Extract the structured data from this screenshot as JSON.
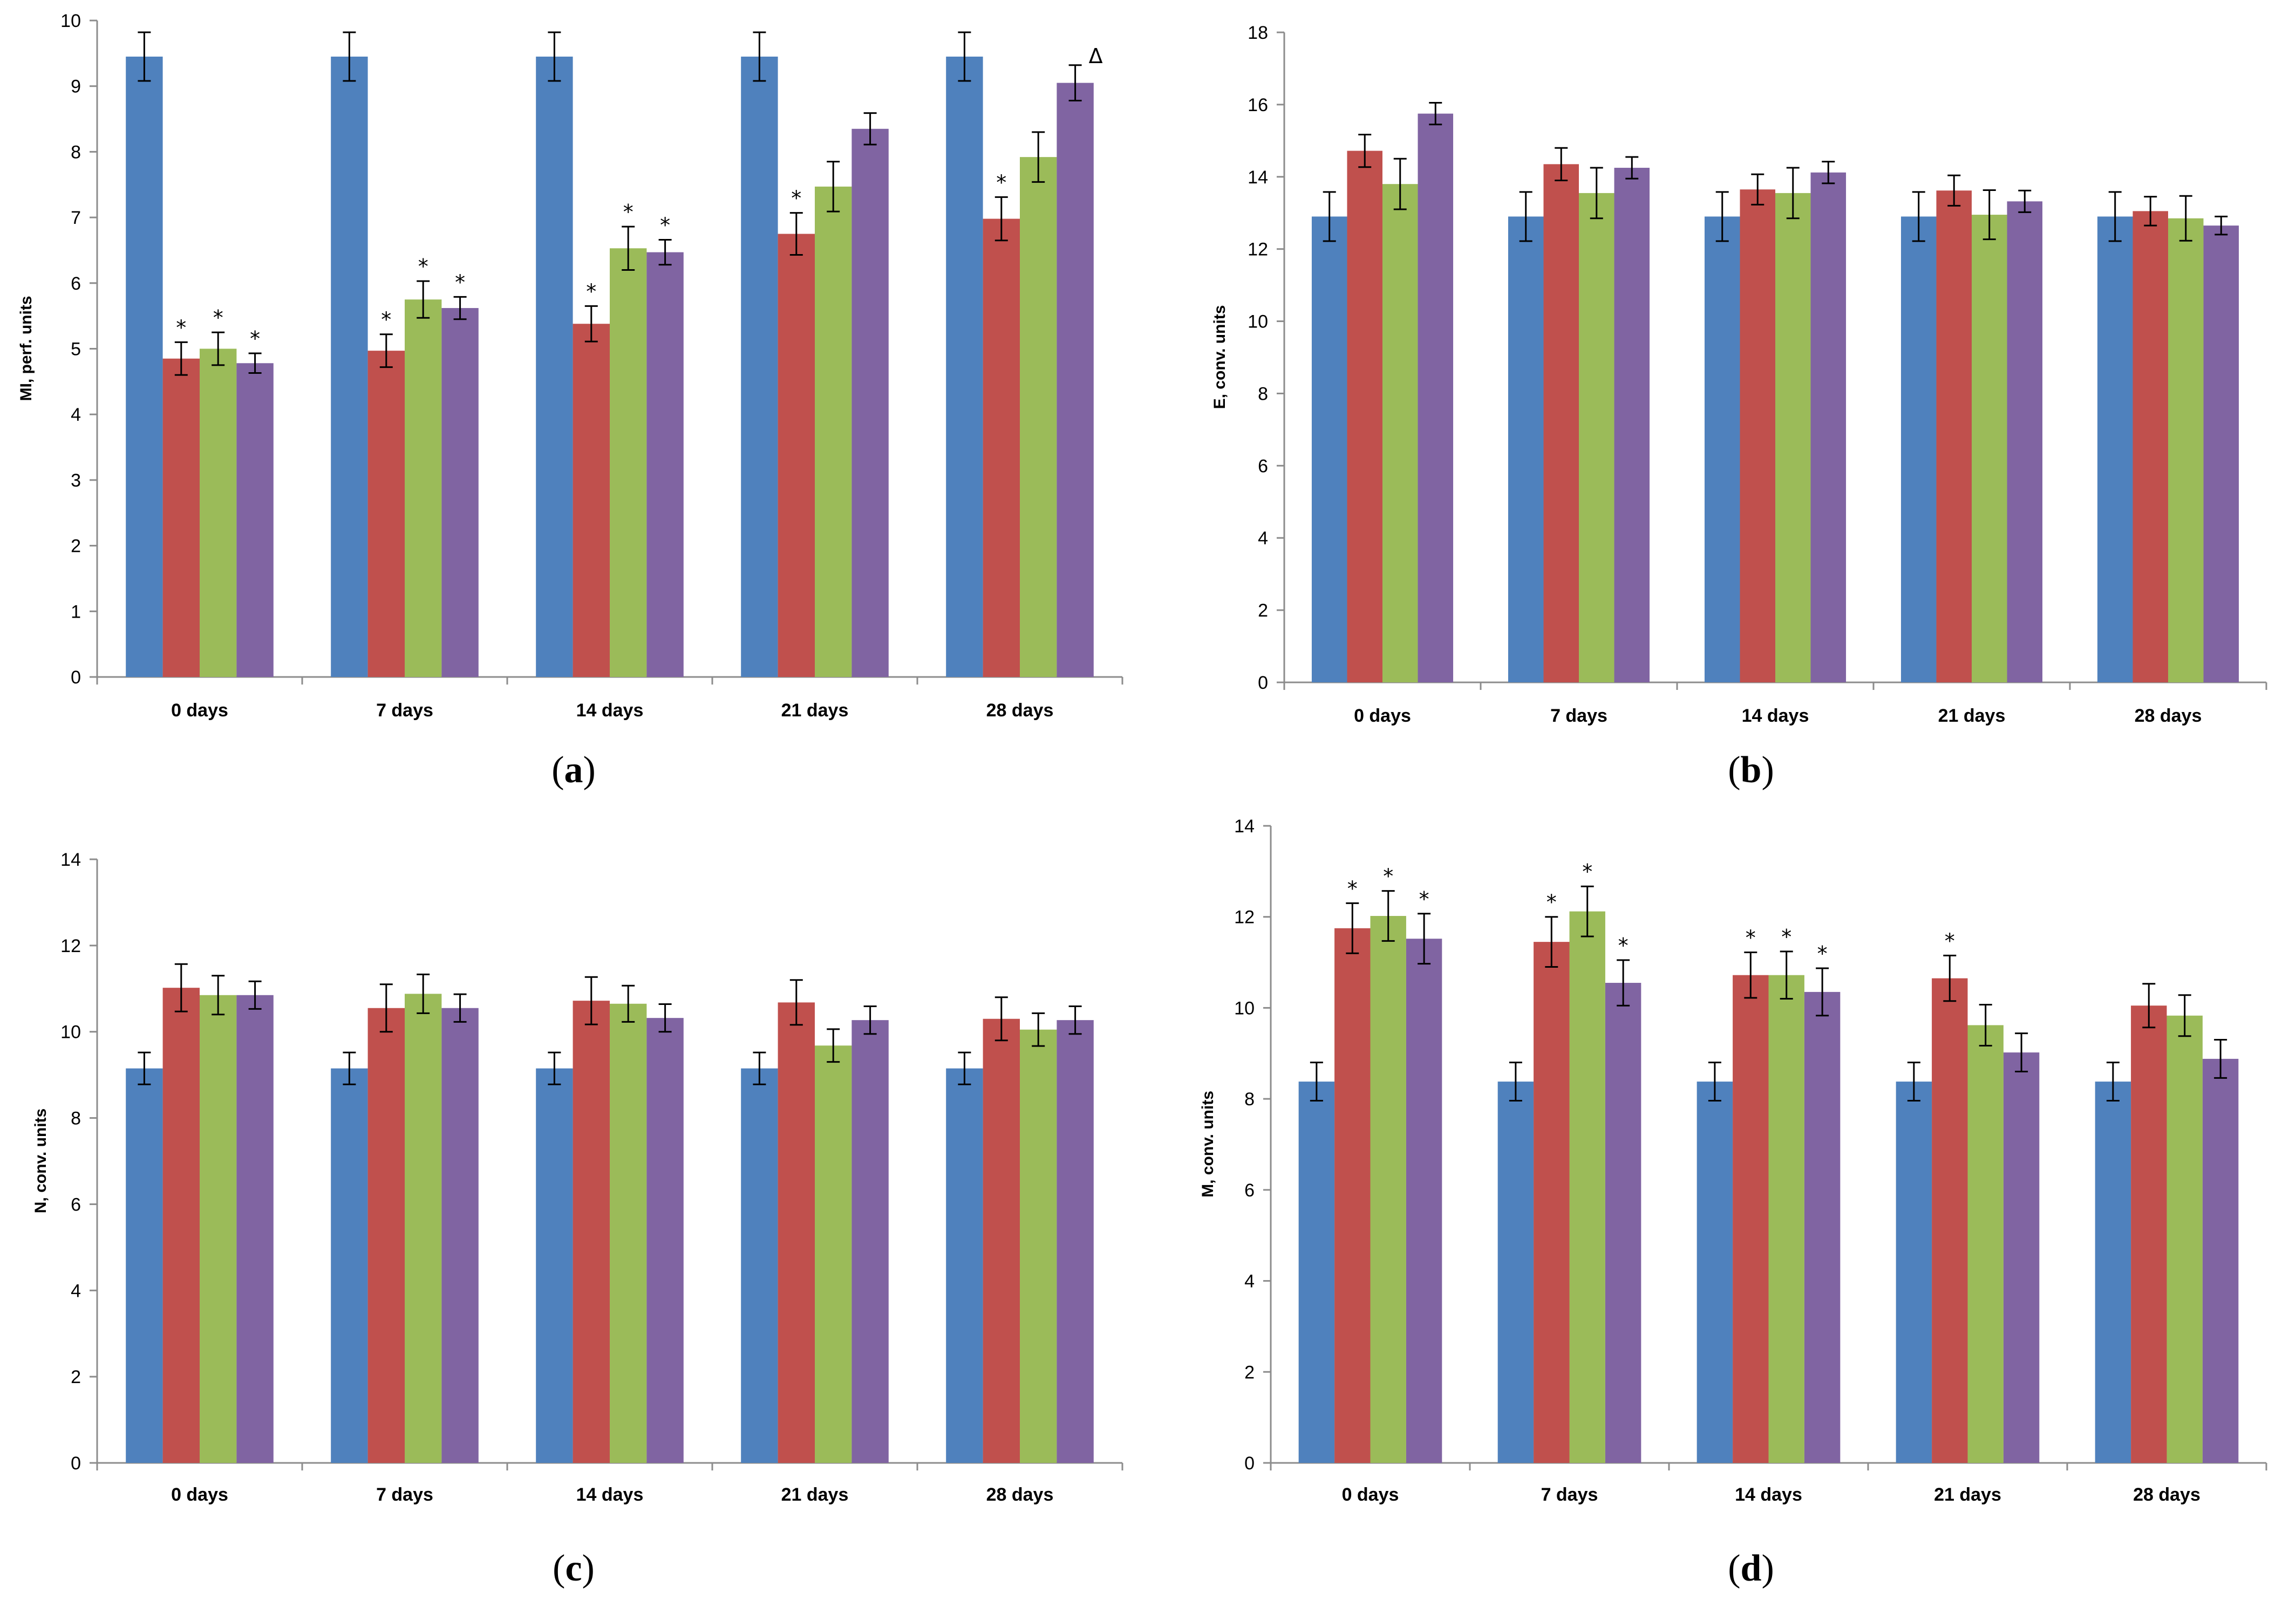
{
  "colors": [
    "#4f81bd",
    "#c0504d",
    "#9bbb59",
    "#8064a2"
  ],
  "chart_data": [
    {
      "type": "bar",
      "panel_label": "a",
      "ylabel": "MI, perf. units",
      "ylim": [
        0,
        10
      ],
      "yticks": [
        "0",
        "1",
        "2",
        "3",
        "4",
        "5",
        "6",
        "7",
        "8",
        "9",
        "10"
      ],
      "categories": [
        "0 days",
        "7 days",
        "14 days",
        "21 days",
        "28 days"
      ],
      "series": [
        {
          "values": [
            9.45,
            9.45,
            9.45,
            9.45,
            9.45
          ],
          "errors": [
            0.37,
            0.37,
            0.37,
            0.37,
            0.37
          ],
          "marks": [
            "",
            "",
            "",
            "",
            ""
          ]
        },
        {
          "values": [
            4.85,
            4.97,
            5.38,
            6.75,
            6.98
          ],
          "errors": [
            0.25,
            0.25,
            0.27,
            0.32,
            0.33
          ],
          "marks": [
            "*",
            "*",
            "*",
            "*",
            "*"
          ]
        },
        {
          "values": [
            5.0,
            5.75,
            6.53,
            7.47,
            7.92
          ],
          "errors": [
            0.25,
            0.28,
            0.33,
            0.38,
            0.38
          ],
          "marks": [
            "*",
            "*",
            "*",
            "",
            ""
          ]
        },
        {
          "values": [
            4.78,
            5.62,
            6.47,
            8.35,
            9.05
          ],
          "errors": [
            0.15,
            0.17,
            0.19,
            0.24,
            0.27
          ],
          "marks": [
            "*",
            "*",
            "*",
            "",
            "Δ"
          ]
        }
      ]
    },
    {
      "type": "bar",
      "panel_label": "b",
      "ylabel": "E, conv. units",
      "ylim": [
        0,
        18
      ],
      "yticks": [
        "0",
        "2",
        "4",
        "6",
        "8",
        "10",
        "12",
        "14",
        "16",
        "18"
      ],
      "categories": [
        "0 days",
        "7 days",
        "14 days",
        "21 days",
        "28 days"
      ],
      "series": [
        {
          "values": [
            12.9,
            12.9,
            12.9,
            12.9,
            12.9
          ],
          "errors": [
            0.68,
            0.68,
            0.68,
            0.68,
            0.68
          ],
          "marks": [
            "",
            "",
            "",
            "",
            ""
          ]
        },
        {
          "values": [
            14.72,
            14.35,
            13.65,
            13.62,
            13.05
          ],
          "errors": [
            0.45,
            0.45,
            0.42,
            0.42,
            0.4
          ],
          "marks": [
            "",
            "",
            "",
            "",
            ""
          ]
        },
        {
          "values": [
            13.8,
            13.55,
            13.55,
            12.95,
            12.85
          ],
          "errors": [
            0.7,
            0.7,
            0.7,
            0.68,
            0.62
          ],
          "marks": [
            "",
            "",
            "",
            "",
            ""
          ]
        },
        {
          "values": [
            15.75,
            14.25,
            14.12,
            13.32,
            12.65
          ],
          "errors": [
            0.3,
            0.3,
            0.3,
            0.3,
            0.25
          ],
          "marks": [
            "",
            "",
            "",
            "",
            ""
          ]
        }
      ]
    },
    {
      "type": "bar",
      "panel_label": "c",
      "ylabel": "N, conv. units",
      "ylim": [
        0,
        14
      ],
      "yticks": [
        "0",
        "2",
        "4",
        "6",
        "8",
        "10",
        "12",
        "14"
      ],
      "categories": [
        "0 days",
        "7 days",
        "14 days",
        "21 days",
        "28 days"
      ],
      "series": [
        {
          "values": [
            9.15,
            9.15,
            9.15,
            9.15,
            9.15
          ],
          "errors": [
            0.37,
            0.37,
            0.37,
            0.37,
            0.37
          ],
          "marks": [
            "",
            "",
            "",
            "",
            ""
          ]
        },
        {
          "values": [
            11.02,
            10.55,
            10.72,
            10.68,
            10.3
          ],
          "errors": [
            0.55,
            0.55,
            0.55,
            0.52,
            0.5
          ],
          "marks": [
            "",
            "",
            "",
            "",
            ""
          ]
        },
        {
          "values": [
            10.85,
            10.88,
            10.65,
            9.68,
            10.05
          ],
          "errors": [
            0.45,
            0.45,
            0.42,
            0.38,
            0.38
          ],
          "marks": [
            "",
            "",
            "",
            "",
            ""
          ]
        },
        {
          "values": [
            10.85,
            10.55,
            10.32,
            10.27,
            10.27
          ],
          "errors": [
            0.32,
            0.32,
            0.32,
            0.32,
            0.32
          ],
          "marks": [
            "",
            "",
            "",
            "",
            ""
          ]
        }
      ]
    },
    {
      "type": "bar",
      "panel_label": "d",
      "ylabel": "M, conv. units",
      "ylim": [
        0,
        14
      ],
      "yticks": [
        "0",
        "2",
        "4",
        "6",
        "8",
        "10",
        "12",
        "14"
      ],
      "categories": [
        "0 days",
        "7 days",
        "14 days",
        "21 days",
        "28 days"
      ],
      "series": [
        {
          "values": [
            8.38,
            8.38,
            8.38,
            8.38,
            8.38
          ],
          "errors": [
            0.42,
            0.42,
            0.42,
            0.42,
            0.42
          ],
          "marks": [
            "",
            "",
            "",
            "",
            ""
          ]
        },
        {
          "values": [
            11.75,
            11.45,
            10.72,
            10.65,
            10.05
          ],
          "errors": [
            0.55,
            0.55,
            0.5,
            0.5,
            0.48
          ],
          "marks": [
            "*",
            "*",
            "*",
            "*",
            ""
          ]
        },
        {
          "values": [
            12.02,
            12.12,
            10.72,
            9.62,
            9.83
          ],
          "errors": [
            0.55,
            0.55,
            0.52,
            0.45,
            0.45
          ],
          "marks": [
            "*",
            "*",
            "*",
            "",
            ""
          ]
        },
        {
          "values": [
            11.52,
            10.55,
            10.35,
            9.02,
            8.88
          ],
          "errors": [
            0.55,
            0.5,
            0.52,
            0.42,
            0.42
          ],
          "marks": [
            "*",
            "*",
            "*",
            "",
            ""
          ]
        }
      ]
    }
  ]
}
